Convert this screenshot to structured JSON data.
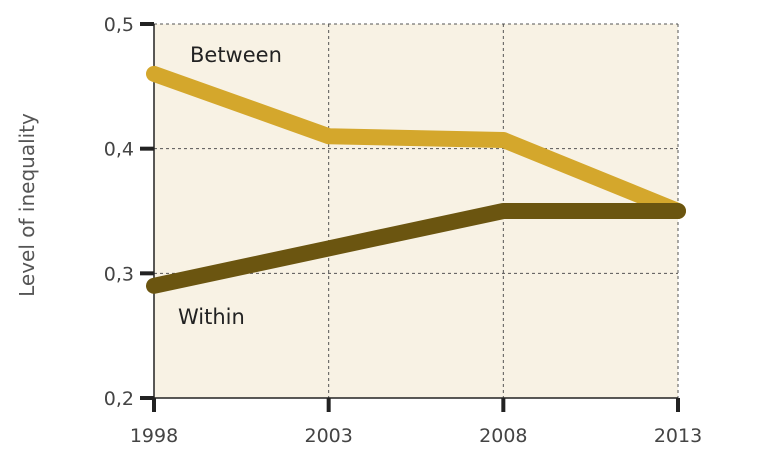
{
  "chart_data": {
    "type": "line",
    "title": "",
    "xlabel": "",
    "ylabel": "Level of inequality",
    "categories": [
      "1998",
      "2003",
      "2008",
      "2013"
    ],
    "y_ticks": [
      "0,2",
      "0,3",
      "0,4",
      "0,5"
    ],
    "y_tick_values": [
      0.2,
      0.3,
      0.4,
      0.5
    ],
    "ylim": [
      0.2,
      0.5
    ],
    "grid": true,
    "series": [
      {
        "name": "Between",
        "values": [
          0.46,
          0.41,
          0.407,
          0.35
        ],
        "color": "#d4a72c"
      },
      {
        "name": "Within",
        "values": [
          0.29,
          0.32,
          0.35,
          0.35
        ],
        "color": "#6b5510"
      }
    ],
    "colors": {
      "plot_background": "#f8f2e4",
      "grid": "#555555",
      "axis": "#222222"
    }
  }
}
